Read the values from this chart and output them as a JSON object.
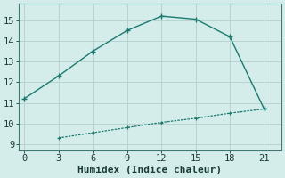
{
  "xlabel": "Humidex (Indice chaleur)",
  "background_color": "#d4edeb",
  "grid_color": "#b8d4d0",
  "line_color": "#1a7a6e",
  "upper_x": [
    0,
    3,
    6,
    9,
    12,
    15,
    18,
    21
  ],
  "upper_y": [
    11.2,
    12.3,
    13.5,
    14.5,
    15.2,
    15.05,
    14.2,
    10.7
  ],
  "lower_x": [
    3,
    6,
    9,
    12,
    15,
    18,
    21
  ],
  "lower_y": [
    9.3,
    9.55,
    9.8,
    10.05,
    10.25,
    10.5,
    10.7
  ],
  "xlim": [
    -0.5,
    22.5
  ],
  "ylim": [
    8.7,
    15.8
  ],
  "xticks": [
    0,
    3,
    6,
    9,
    12,
    15,
    18,
    21
  ],
  "yticks": [
    9,
    10,
    11,
    12,
    13,
    14,
    15
  ],
  "xlabel_fontsize": 8,
  "tick_fontsize": 7.5
}
